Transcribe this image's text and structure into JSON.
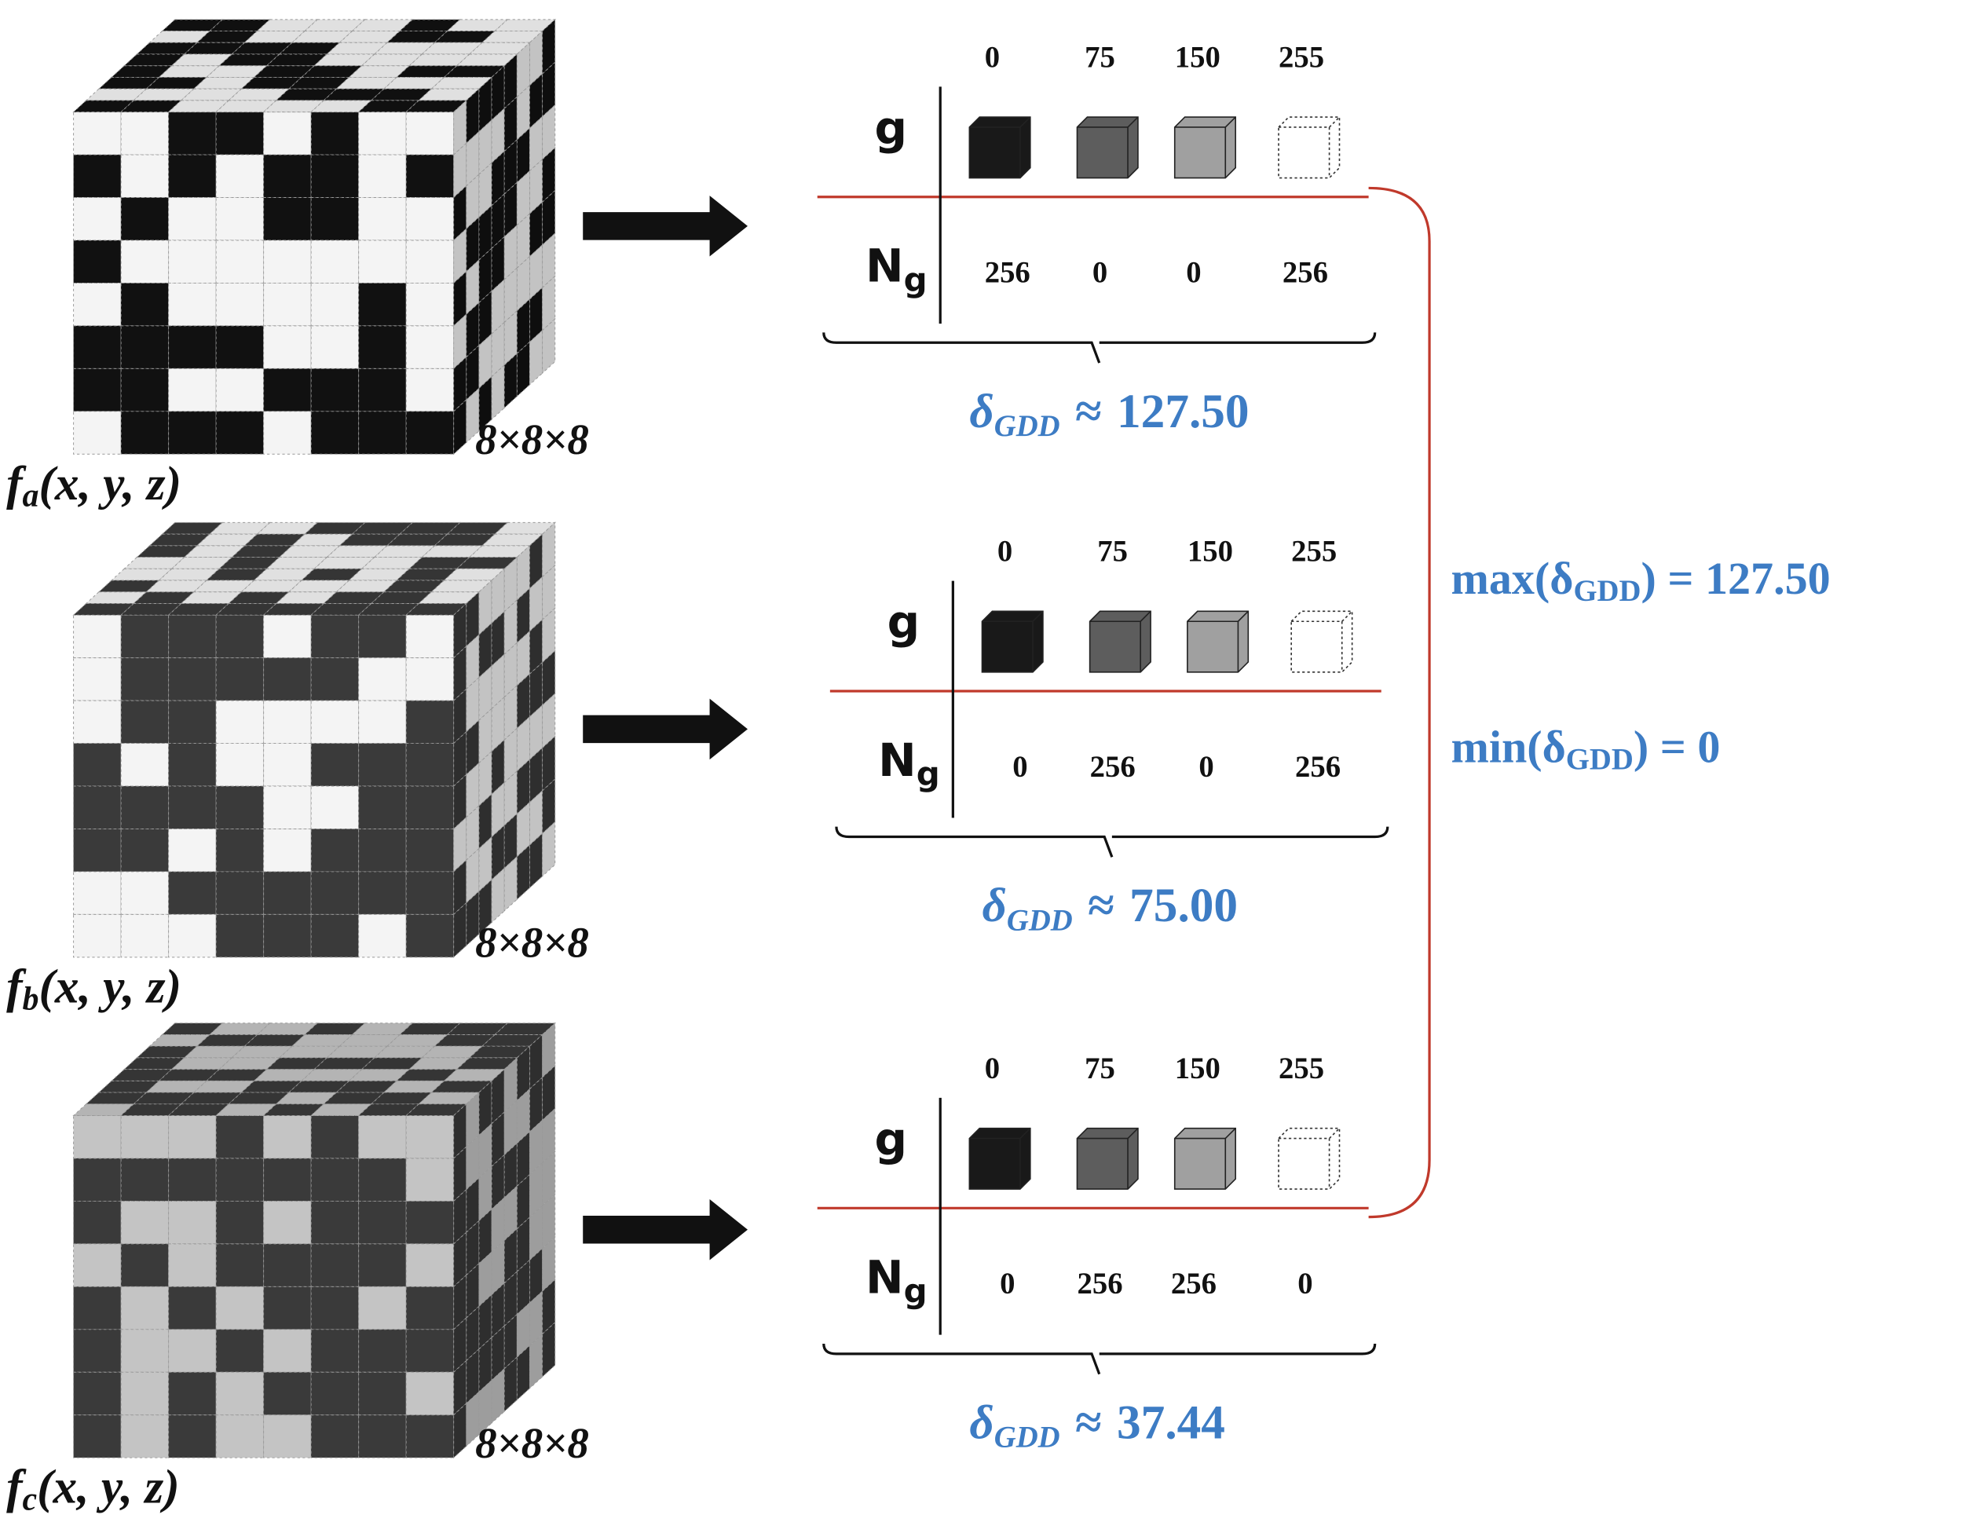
{
  "panels": [
    {
      "function_label": {
        "base": "f",
        "sub": "a",
        "args": "(x, y, z)"
      },
      "size": "8×8×8",
      "row_labels": {
        "g": "g",
        "n_base": "N",
        "n_sub": "g"
      },
      "gray_levels": [
        0,
        75,
        150,
        255
      ],
      "counts": [
        256,
        0,
        0,
        256
      ],
      "delta": {
        "symbol": "δ",
        "sub": "GDD",
        "relation": "≈",
        "value": "127.50"
      }
    },
    {
      "function_label": {
        "base": "f",
        "sub": "b",
        "args": "(x, y, z)"
      },
      "size": "8×8×8",
      "row_labels": {
        "g": "g",
        "n_base": "N",
        "n_sub": "g"
      },
      "gray_levels": [
        0,
        75,
        150,
        255
      ],
      "counts": [
        0,
        256,
        0,
        256
      ],
      "delta": {
        "symbol": "δ",
        "sub": "GDD",
        "relation": "≈",
        "value": "75.00"
      }
    },
    {
      "function_label": {
        "base": "f",
        "sub": "c",
        "args": "(x, y, z)"
      },
      "size": "8×8×8",
      "row_labels": {
        "g": "g",
        "n_base": "N",
        "n_sub": "g"
      },
      "gray_levels": [
        0,
        75,
        150,
        255
      ],
      "counts": [
        0,
        256,
        256,
        0
      ],
      "delta": {
        "symbol": "δ",
        "sub": "GDD",
        "relation": "≈",
        "value": "37.44"
      }
    }
  ],
  "summary": {
    "max": {
      "func": "max(",
      "symbol": "δ",
      "sub": "GDD",
      "rest": ") = 127.50"
    },
    "min": {
      "func": "min(",
      "symbol": "δ",
      "sub": "GDD",
      "rest": ") = 0"
    }
  }
}
